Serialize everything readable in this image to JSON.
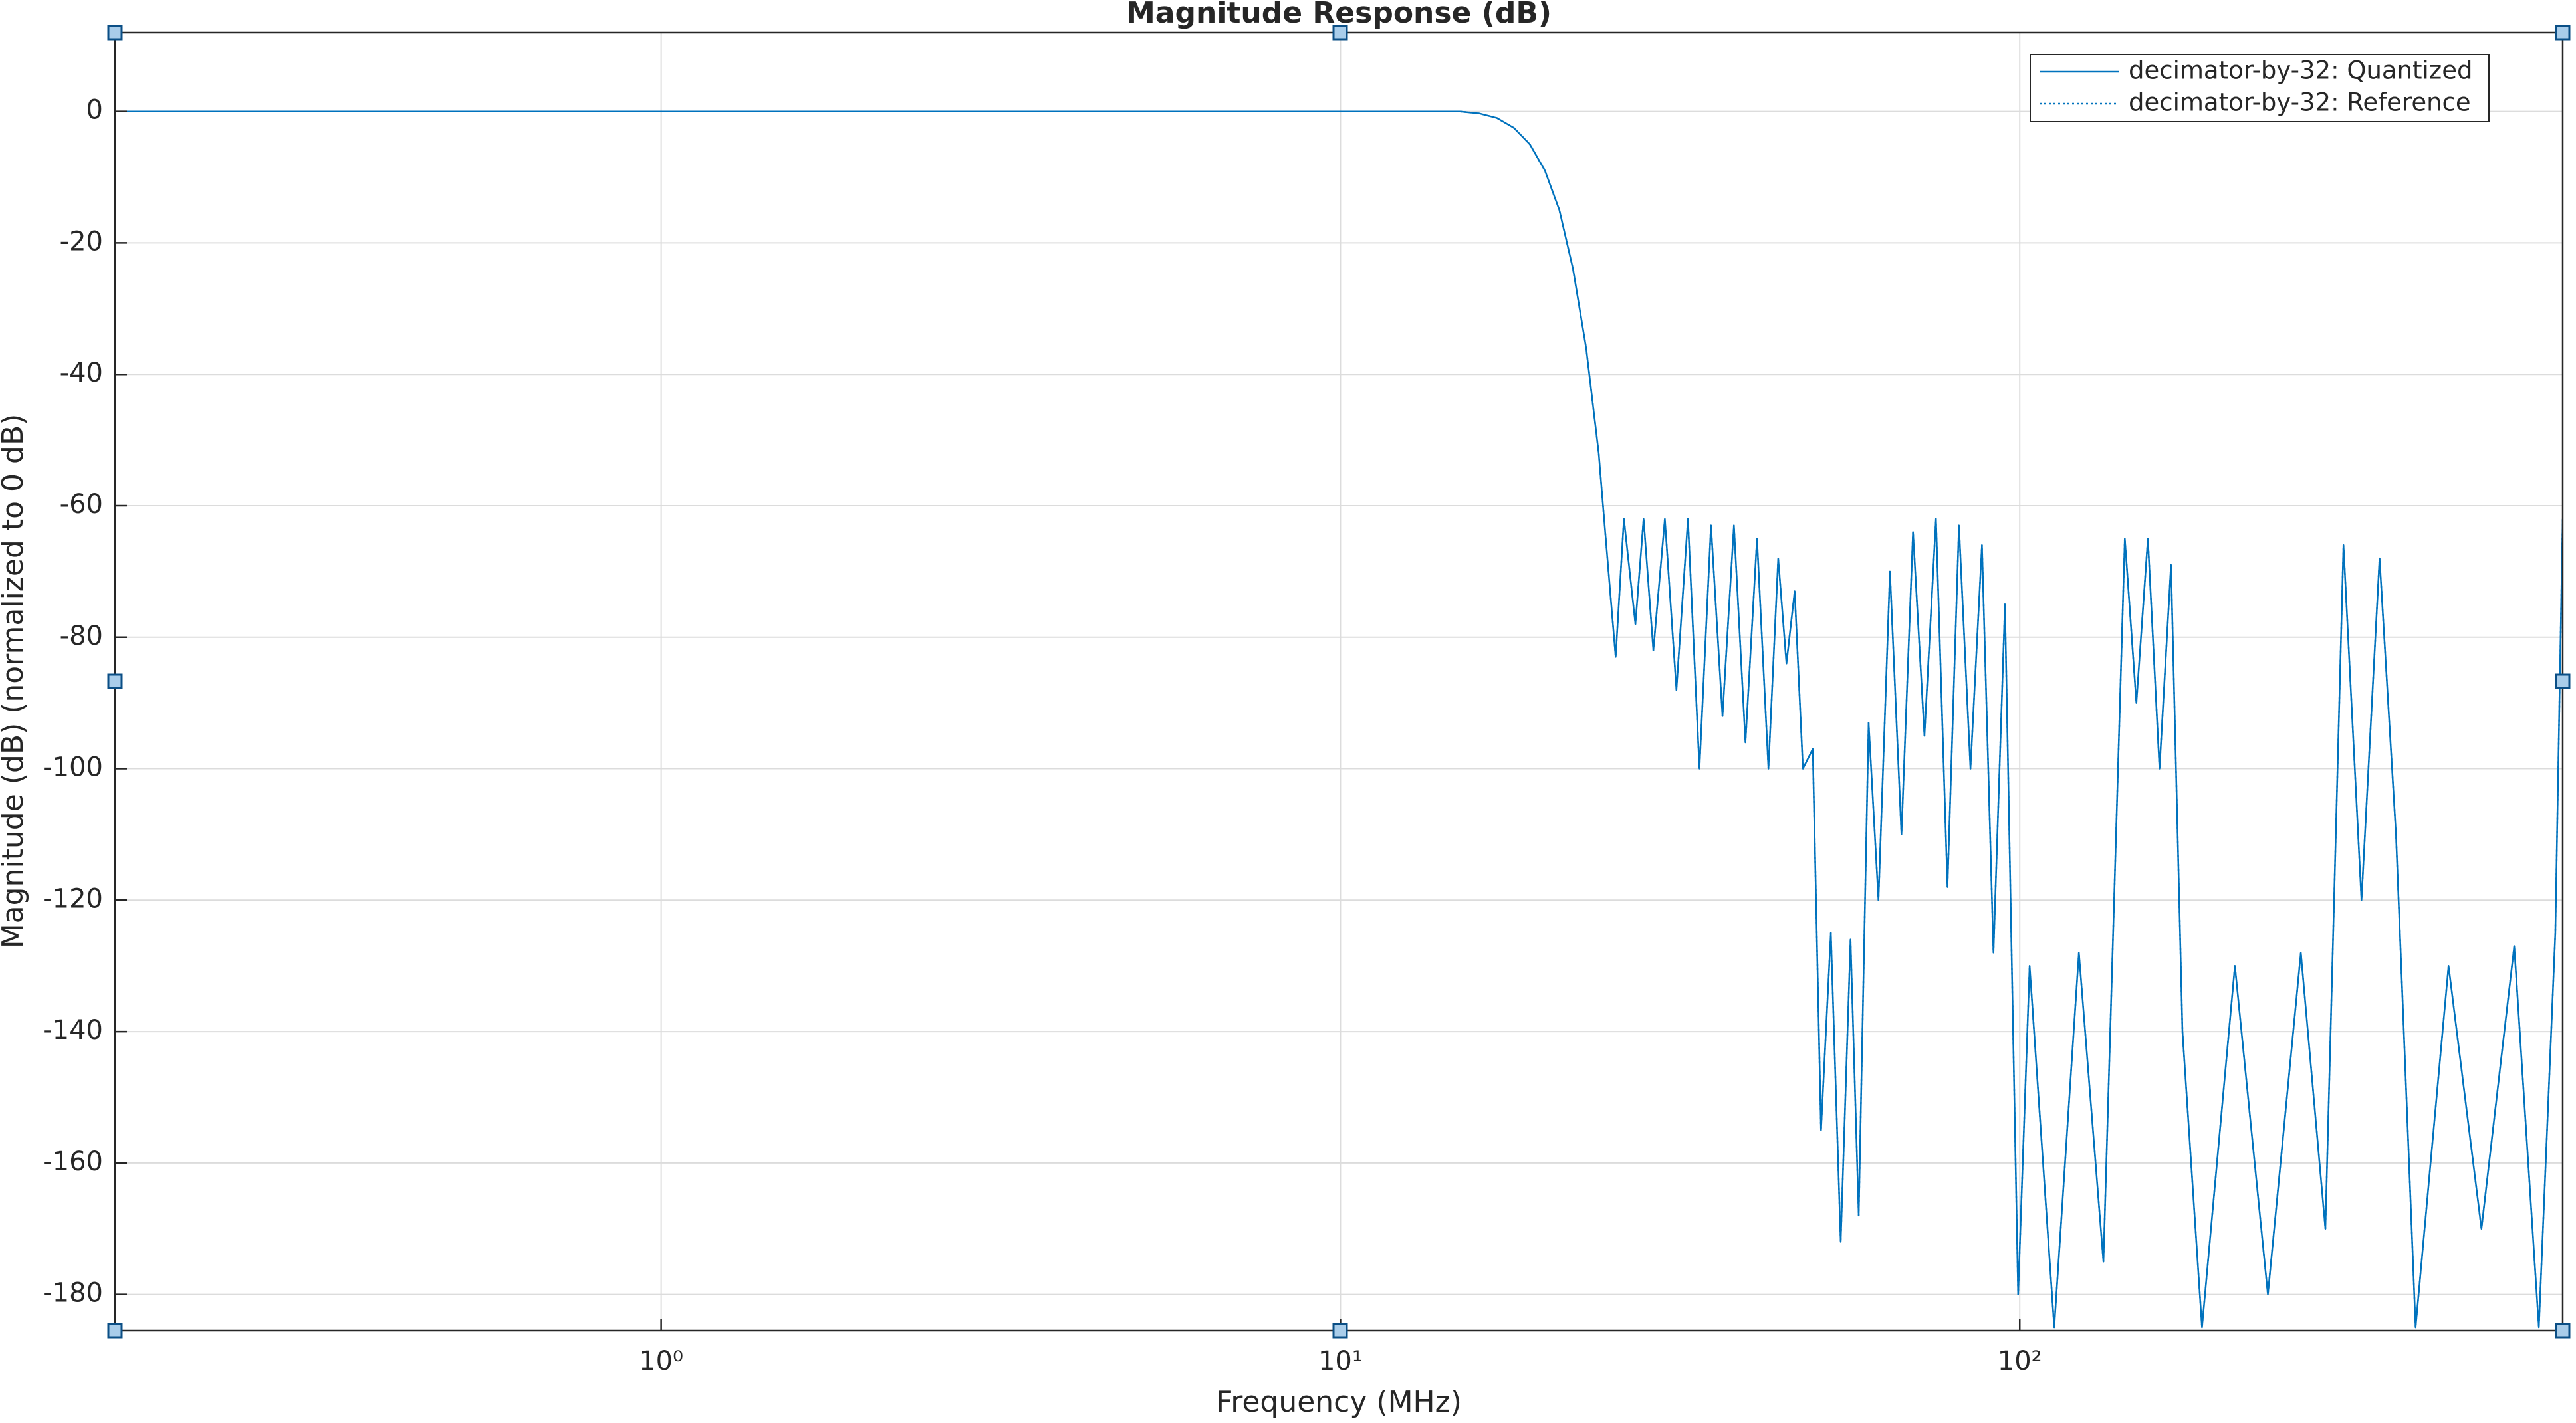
{
  "chart_data": {
    "type": "line",
    "title": "Magnitude Response (dB)",
    "x_label": "Frequency (MHz)",
    "y_label": "Magnitude (dB) (normalized to 0 dB)",
    "xscale": "log",
    "grid": true,
    "legend": "upper right",
    "xlim": [
      0.157,
      630
    ],
    "ylim": [
      -185.5,
      12
    ],
    "xticks": [
      {
        "value": 1,
        "label": "10⁰"
      },
      {
        "value": 10,
        "label": "10¹"
      },
      {
        "value": 100,
        "label": "10²"
      }
    ],
    "yticks": [
      0,
      -20,
      -40,
      -60,
      -80,
      -100,
      -120,
      -140,
      -160,
      -180
    ],
    "x": [
      0.157,
      1,
      10,
      15,
      16,
      17,
      18,
      19,
      20,
      21,
      22,
      23,
      24,
      24.44,
      25.42,
      26.14,
      27.18,
      27.94,
      28.88,
      30.03,
      31.23,
      32.47,
      33.76,
      35.11,
      36.51,
      37.95,
      39.46,
      41.04,
      42.66,
      44.1,
      45.35,
      46.63,
      47.95,
      49.58,
      50.98,
      52.71,
      54.5,
      56.35,
      57.94,
      59.91,
      61.94,
      64.41,
      66.97,
      69.64,
      72.39,
      75.28,
      78.27,
      81.38,
      84.62,
      87.98,
      91.48,
      95.12,
      99.45,
      103.4,
      112.4,
      122.2,
      132.8,
      142.8,
      148.5,
      154.4,
      160.6,
      167,
      173.6,
      185.5,
      207.4,
      231.9,
      259.3,
      281.8,
      299.6,
      318.5,
      338.6,
      358,
      382.6,
      427.9,
      478.3,
      534.6,
      581.1,
      614.4,
      630
    ],
    "series": [
      {
        "name": "decimator-by-32: Quantized",
        "color": "#0072bd",
        "dash": "solid",
        "values": [
          0,
          0,
          0,
          0,
          -0.3,
          -1,
          -2.5,
          -5,
          -9,
          -15,
          -24,
          -36,
          -52,
          -62,
          -83,
          -62,
          -78,
          -62,
          -82,
          -62,
          -88,
          -62,
          -100,
          -63,
          -92,
          -63,
          -96,
          -65,
          -100,
          -68,
          -84,
          -73,
          -100,
          -97,
          -155,
          -125,
          -172,
          -126,
          -168,
          -93,
          -120,
          -70,
          -110,
          -64,
          -95,
          -62,
          -118,
          -63,
          -100,
          -66,
          -128,
          -75,
          -180,
          -130,
          -185,
          -128,
          -175,
          -65,
          -90,
          -65,
          -100,
          -69,
          -140,
          -185,
          -130,
          -180,
          -128,
          -170,
          -66,
          -120,
          -68,
          -110,
          -185,
          -130,
          -170,
          -127,
          -185,
          -125,
          -62
        ]
      },
      {
        "name": "decimator-by-32: Reference",
        "color": "#0072bd",
        "dash": "dotted",
        "values": [
          0,
          0,
          0,
          0,
          -0.3,
          -1,
          -2.5,
          -5,
          -9,
          -15,
          -24,
          -36,
          -52,
          -62,
          -83,
          -62,
          -78,
          -62,
          -82,
          -62,
          -88,
          -62,
          -100,
          -63,
          -92,
          -63,
          -96,
          -65,
          -100,
          -68,
          -84,
          -73,
          -100,
          -97,
          -155,
          -125,
          -172,
          -126,
          -168,
          -93,
          -120,
          -70,
          -110,
          -64,
          -95,
          -62,
          -118,
          -63,
          -100,
          -66,
          -128,
          -75,
          -180,
          -130,
          -185,
          -128,
          -175,
          -65,
          -90,
          -65,
          -100,
          -69,
          -140,
          -185,
          -130,
          -180,
          -128,
          -170,
          -66,
          -120,
          -68,
          -110,
          -185,
          -130,
          -170,
          -127,
          -185,
          -125,
          -62
        ]
      }
    ]
  }
}
